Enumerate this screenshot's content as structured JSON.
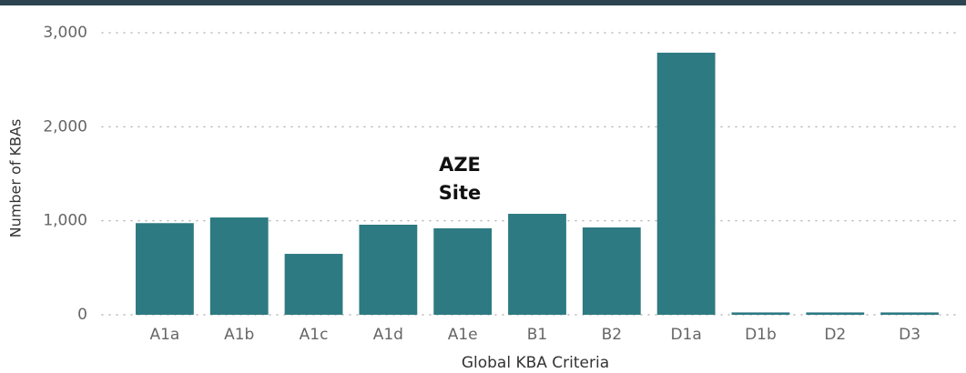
{
  "chart_data": {
    "type": "bar",
    "x_label": "Global KBA Criteria",
    "y_label": "Number of KBAs",
    "annotation": "AZE Site",
    "categories": [
      "A1a",
      "A1b",
      "A1c",
      "A1d",
      "A1e",
      "B1",
      "B2",
      "D1a",
      "D1b",
      "D2",
      "D3"
    ],
    "values": [
      975,
      1035,
      648,
      958,
      920,
      1074,
      929,
      2788,
      25,
      25,
      25
    ],
    "color": "#2e7a82",
    "ylim": [
      0,
      3000
    ],
    "yticks": [
      0,
      {
        "value": 1000,
        "label": "1,000"
      },
      {
        "value": 2000,
        "label": "2,000"
      },
      {
        "value": 3000,
        "label": "3,000"
      }
    ],
    "grid": true
  }
}
